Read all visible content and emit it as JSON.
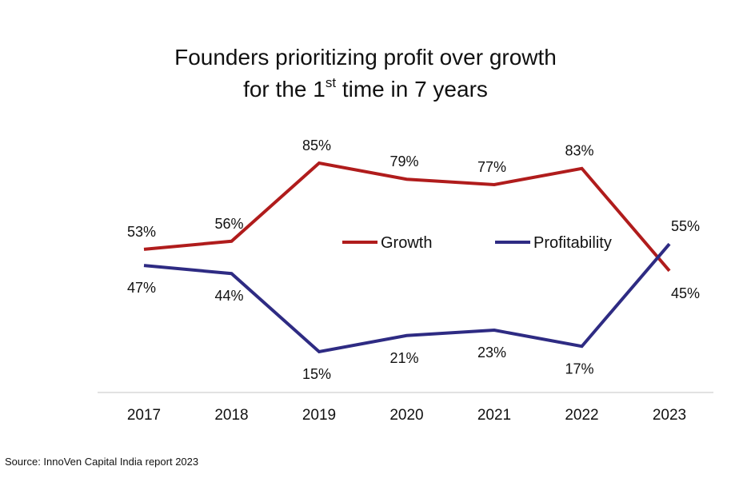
{
  "chart_data": {
    "type": "line",
    "title_line1": "Founders prioritizing profit over growth",
    "title_line2_pre": "for the 1",
    "title_line2_sup": "st",
    "title_line2_post": " time in 7 years",
    "categories": [
      "2017",
      "2018",
      "2019",
      "2020",
      "2021",
      "2022",
      "2023"
    ],
    "series": [
      {
        "name": "Growth",
        "color": "#b01c1c",
        "values": [
          53,
          56,
          85,
          79,
          77,
          83,
          45
        ],
        "labels": [
          "53%",
          "56%",
          "85%",
          "79%",
          "77%",
          "83%",
          "45%"
        ]
      },
      {
        "name": "Profitability",
        "color": "#2e2b83",
        "values": [
          47,
          44,
          15,
          21,
          23,
          17,
          55
        ],
        "labels": [
          "47%",
          "44%",
          "15%",
          "21%",
          "23%",
          "17%",
          "55%"
        ]
      }
    ],
    "ylim": [
      0,
      100
    ],
    "xlabel": "",
    "ylabel": "",
    "grid": false,
    "legend": "center-right",
    "source": "Source: InnoVen Capital India report 2023"
  }
}
